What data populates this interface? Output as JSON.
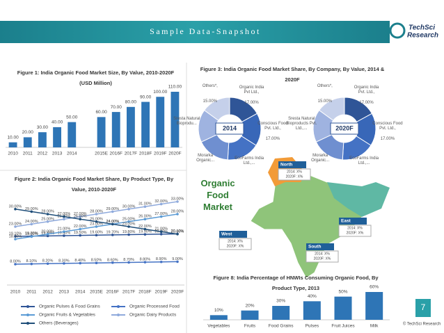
{
  "header": {
    "title": "Sample Data-Snapshot",
    "logo": [
      "TechSci",
      "Research"
    ]
  },
  "chart_data": [
    {
      "type": "bar",
      "title": "Figure 1: India Organic Food Market Size, By Value, 2010-2020F (USD Million)",
      "categories": [
        "2010",
        "2011",
        "2012",
        "2013",
        "2014",
        "2015E",
        "2016F",
        "2017F",
        "2018F",
        "2019F",
        "2020F"
      ],
      "values": [
        10,
        20,
        30,
        40,
        50,
        60,
        70,
        80,
        90,
        100,
        110
      ],
      "value_labels": [
        "10.00",
        "20.00",
        "30.00",
        "40.00",
        "50.00",
        "60.00",
        "70.00",
        "80.00",
        "90.00",
        "100.00",
        "110.00"
      ],
      "color": "#2e75b6"
    },
    {
      "type": "line",
      "title": "Figure 2: India Organic Food Market Share, By Product Type, By Value, 2010-2020F",
      "categories": [
        "2010",
        "2011",
        "2012",
        "2013",
        "2014",
        "2015E",
        "2016F",
        "2017F",
        "2018F",
        "2019F",
        "2020F"
      ],
      "series": [
        {
          "name": "Organic Pulses & Food Grains",
          "color": "#2f5597",
          "values": [
            19.1,
            19.2,
            19.3,
            19.4,
            19.5,
            19.6,
            19.7,
            19.8,
            19.9,
            20,
            20.1
          ],
          "value_labels": [
            "19.10%",
            "19.20%",
            "19.30%",
            "19.40%",
            "19.50%",
            "19.60%",
            "19.70%",
            "19.80%",
            "19.90%",
            "20.00%",
            "20.10%"
          ]
        },
        {
          "name": "Organic Processed Food",
          "color": "#4472c4",
          "values": [
            8,
            8.1,
            8.2,
            8.3,
            8.4,
            8.5,
            8.6,
            8.7,
            8.8,
            8.9,
            9
          ],
          "value_labels": [
            "8.00%",
            "8.10%",
            "8.20%",
            "8.30%",
            "8.40%",
            "8.50%",
            "8.60%",
            "8.70%",
            "8.80%",
            "8.90%",
            "9.00%"
          ]
        },
        {
          "name": "Organic Fruits & Vegetables",
          "color": "#5b9bd5",
          "values": [
            18,
            19,
            20,
            21,
            22,
            23,
            24,
            25,
            26,
            27,
            28
          ],
          "value_labels": [
            "18.00%",
            "19.00%",
            "20.00%",
            "21.00%",
            "22.00%",
            "23.00%",
            "24.00%",
            "25.00%",
            "26.00%",
            "27.00%",
            "28.00%"
          ]
        },
        {
          "name": "Organic Dairy Products",
          "color": "#8faadc",
          "values": [
            23,
            24,
            25,
            26,
            27,
            28,
            29,
            30,
            31,
            32,
            33
          ],
          "value_labels": [
            "23.00%",
            "24.00%",
            "25.00%",
            "26.00%",
            "27.00%",
            "28.00%",
            "29.00%",
            "30.00%",
            "31.00%",
            "32.00%",
            "33.00%"
          ]
        },
        {
          "name": "Others (Beverages)",
          "color": "#1f4e79",
          "values": [
            30,
            29,
            28,
            27,
            26,
            25,
            24,
            23,
            22,
            21,
            20
          ],
          "value_labels": [
            "30.00%",
            "29.00%",
            "28.00%",
            "27.00%",
            "26.00%",
            "25.00%",
            "24.00%",
            "23.00%",
            "22.00%",
            "21.00%",
            "20.00%"
          ]
        }
      ]
    },
    {
      "type": "donut",
      "title": "Figure 3: India Organic Food Market Share, By Company, By Value, 2014 & 2020F",
      "charts": [
        {
          "center_label": "2014",
          "categories": [
            "Organic India Pvt Ltd.,",
            "Conscious Food Pvt. Ltd.,",
            "EcoFarms India Ltd.,...",
            "Morarka Organic...",
            "Sresta Natural Bioprodu...",
            "Others*,"
          ],
          "values": [
            17,
            17,
            17,
            17,
            17,
            15
          ],
          "value_labels": [
            "17.00%",
            "17.00%",
            null,
            null,
            null,
            "15.00%"
          ],
          "colors": [
            "#2f5597",
            "#3867b8",
            "#4472c4",
            "#6f8fd0",
            "#9fb3e0",
            "#c5d0ea"
          ]
        },
        {
          "center_label": "2020F",
          "categories": [
            "Organic India Pvt. Ltd.,",
            "Conscious Food Pvt. Ltd.,",
            "EcoFarms India Ltd.,...",
            "Morarka Organic...",
            "Sresta Natural Bioproducts Pvt. Ltd.,...",
            "Others*,"
          ],
          "values": [
            17,
            17,
            17,
            17,
            17,
            15
          ],
          "value_labels": [
            "17.00%",
            "17.00%",
            null,
            null,
            null,
            "15.00%"
          ],
          "colors": [
            "#2f5597",
            "#3867b8",
            "#4472c4",
            "#6f8fd0",
            "#9fb3e0",
            "#c5d0ea"
          ]
        }
      ]
    },
    {
      "type": "bar",
      "title": "Figure 8: India Percentage of HNWIs Consuming Organic Food, By Product Type, 2013",
      "categories": [
        "Vegetables",
        "Fruits",
        "Food Grains",
        "Pulses",
        "Fruit Juices",
        "Milk"
      ],
      "values": [
        10,
        20,
        30,
        40,
        50,
        60
      ],
      "value_labels": [
        "10%",
        "20%",
        "30%",
        "40%",
        "50%",
        "60%"
      ],
      "color": "#2e75b6"
    }
  ],
  "map": {
    "title": "Organic Food Market",
    "regions": [
      {
        "name": "North",
        "lines": [
          "2014: X%",
          "2020F: X%"
        ]
      },
      {
        "name": "East",
        "lines": [
          "2014: X%",
          "2020F: X%"
        ]
      },
      {
        "name": "West",
        "lines": [
          "2014: X%",
          "2020F: X%"
        ]
      },
      {
        "name": "South",
        "lines": [
          "2014: X%",
          "2020F: X%"
        ]
      }
    ]
  },
  "footer": {
    "page": "7",
    "copyright": "© TechSci Research"
  }
}
